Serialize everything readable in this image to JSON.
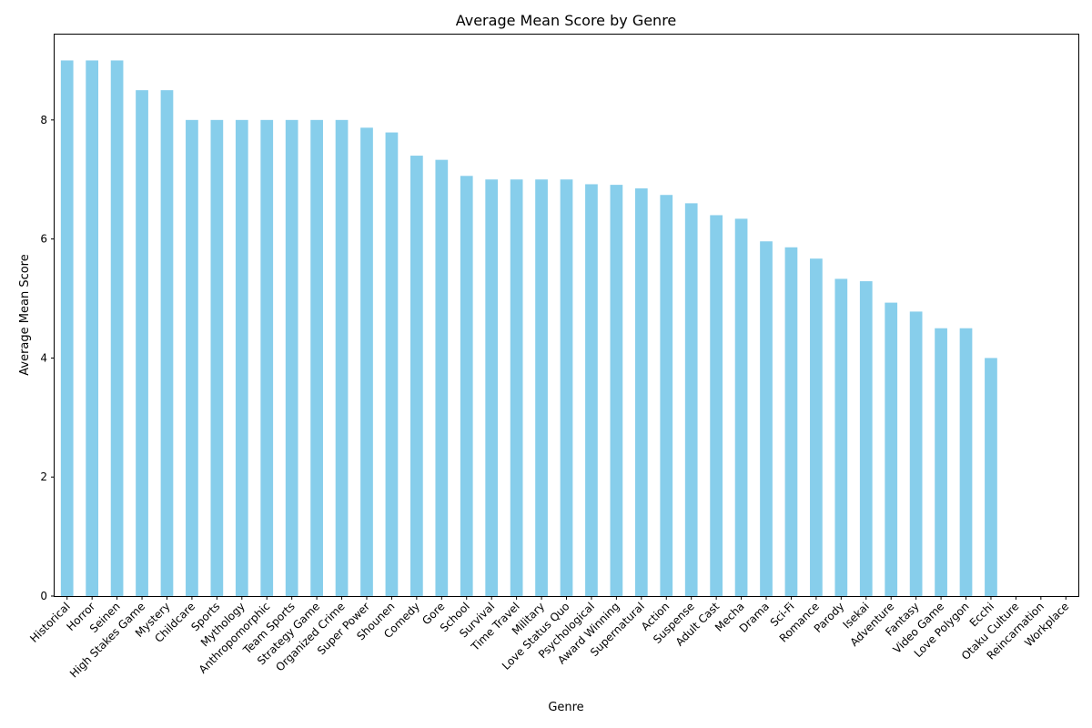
{
  "chart_data": {
    "type": "bar",
    "title": "Average Mean Score by Genre",
    "xlabel": "Genre",
    "ylabel": "Average Mean Score",
    "ylim": [
      0,
      9.45
    ],
    "yticks": [
      0,
      2,
      4,
      6,
      8
    ],
    "grid": false,
    "bar_color": "#87CEEB",
    "categories": [
      "Historical",
      "Horror",
      "Seinen",
      "High Stakes Game",
      "Mystery",
      "Childcare",
      "Sports",
      "Mythology",
      "Anthropomorphic",
      "Team Sports",
      "Strategy Game",
      "Organized Crime",
      "Super Power",
      "Shounen",
      "Comedy",
      "Gore",
      "School",
      "Survival",
      "Time Travel",
      "Military",
      "Love Status Quo",
      "Psychological",
      "Award Winning",
      "Supernatural",
      "Action",
      "Suspense",
      "Adult Cast",
      "Mecha",
      "Drama",
      "Sci-Fi",
      "Romance",
      "Parody",
      "Isekai",
      "Adventure",
      "Fantasy",
      "Video Game",
      "Love Polygon",
      "Ecchi",
      "Otaku Culture",
      "Reincarnation",
      "Workplace"
    ],
    "values": [
      9.0,
      9.0,
      9.0,
      8.5,
      8.5,
      8.0,
      8.0,
      8.0,
      8.0,
      8.0,
      8.0,
      8.0,
      7.87,
      7.79,
      7.4,
      7.33,
      7.06,
      7.0,
      7.0,
      7.0,
      7.0,
      6.92,
      6.91,
      6.85,
      6.74,
      6.6,
      6.4,
      6.34,
      5.96,
      5.86,
      5.67,
      5.33,
      5.29,
      4.93,
      4.78,
      4.5,
      4.5,
      4.0,
      0,
      0,
      0
    ]
  }
}
